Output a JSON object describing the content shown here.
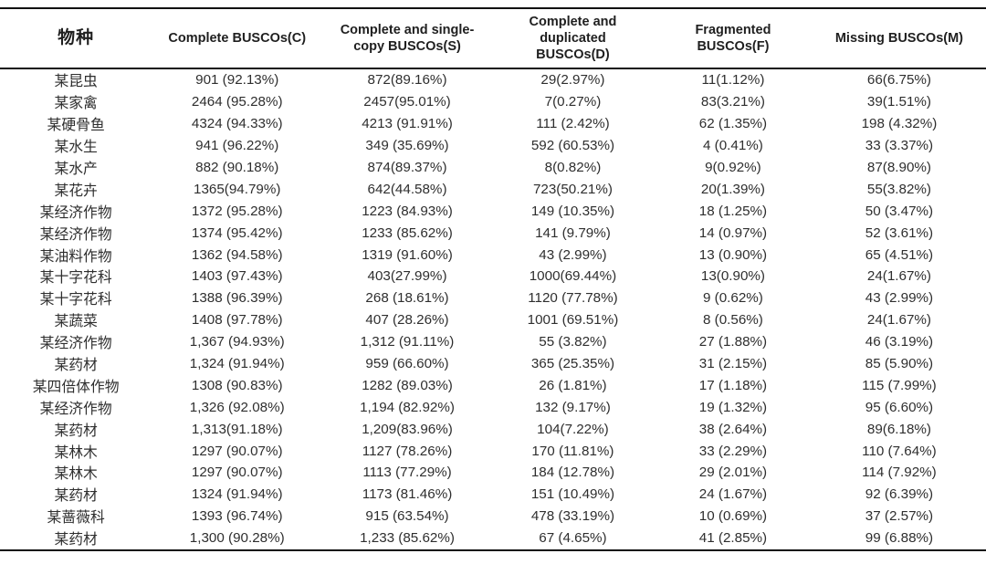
{
  "page": {
    "background": "#ffffff",
    "text_color": "#2e2e2e",
    "rule_color": "#111111"
  },
  "table": {
    "columns": [
      "物种",
      "Complete BUSCOs(C)",
      "Complete and single-\ncopy BUSCOs(S)",
      "Complete and\nduplicated\nBUSCOs(D)",
      "Fragmented\nBUSCOs(F)",
      "Missing BUSCOs(M)"
    ],
    "rows": [
      [
        "某昆虫",
        "901 (92.13%)",
        "872(89.16%)",
        "29(2.97%)",
        "11(1.12%)",
        "66(6.75%)"
      ],
      [
        "某家禽",
        "2464 (95.28%)",
        "2457(95.01%)",
        "7(0.27%)",
        "83(3.21%)",
        "39(1.51%)"
      ],
      [
        "某硬骨鱼",
        "4324 (94.33%)",
        "4213 (91.91%)",
        "111 (2.42%)",
        "62 (1.35%)",
        "198 (4.32%)"
      ],
      [
        "某水生",
        "941 (96.22%)",
        "349 (35.69%)",
        "592 (60.53%)",
        "4 (0.41%)",
        "33 (3.37%)"
      ],
      [
        "某水产",
        "882 (90.18%)",
        "874(89.37%)",
        "8(0.82%)",
        "9(0.92%)",
        "87(8.90%)"
      ],
      [
        "某花卉",
        "1365(94.79%)",
        "642(44.58%)",
        "723(50.21%)",
        "20(1.39%)",
        "55(3.82%)"
      ],
      [
        "某经济作物",
        "1372 (95.28%)",
        "1223 (84.93%)",
        "149 (10.35%)",
        "18 (1.25%)",
        "50 (3.47%)"
      ],
      [
        "某经济作物",
        "1374 (95.42%)",
        "1233 (85.62%)",
        "141 (9.79%)",
        "14 (0.97%)",
        "52 (3.61%)"
      ],
      [
        "某油料作物",
        "1362 (94.58%)",
        "1319 (91.60%)",
        "43 (2.99%)",
        "13 (0.90%)",
        "65 (4.51%)"
      ],
      [
        "某十字花科",
        "1403 (97.43%)",
        "403(27.99%)",
        "1000(69.44%)",
        "13(0.90%)",
        "24(1.67%)"
      ],
      [
        "某十字花科",
        "1388 (96.39%)",
        "268 (18.61%)",
        "1120 (77.78%)",
        "9 (0.62%)",
        "43 (2.99%)"
      ],
      [
        "某蔬菜",
        "1408 (97.78%)",
        "407 (28.26%)",
        "1001 (69.51%)",
        "8 (0.56%)",
        "24(1.67%)"
      ],
      [
        "某经济作物",
        "1,367 (94.93%)",
        "1,312 (91.11%)",
        "55 (3.82%)",
        "27 (1.88%)",
        "46 (3.19%)"
      ],
      [
        "某药材",
        "1,324 (91.94%)",
        "959 (66.60%)",
        "365 (25.35%)",
        "31 (2.15%)",
        "85 (5.90%)"
      ],
      [
        "某四倍体作物",
        "1308 (90.83%)",
        "1282 (89.03%)",
        "26 (1.81%)",
        "17 (1.18%)",
        "115 (7.99%)"
      ],
      [
        "某经济作物",
        "1,326 (92.08%)",
        "1,194 (82.92%)",
        "132 (9.17%)",
        "19 (1.32%)",
        "95 (6.60%)"
      ],
      [
        "某药材",
        "1,313(91.18%)",
        "1,209(83.96%)",
        "104(7.22%)",
        "38 (2.64%)",
        "89(6.18%)"
      ],
      [
        "某林木",
        "1297 (90.07%)",
        "1127 (78.26%)",
        "170 (11.81%)",
        "33 (2.29%)",
        "110 (7.64%)"
      ],
      [
        "某林木",
        "1297 (90.07%)",
        "1113 (77.29%)",
        "184 (12.78%)",
        "29 (2.01%)",
        "114 (7.92%)"
      ],
      [
        "某药材",
        "1324 (91.94%)",
        "1173 (81.46%)",
        "151 (10.49%)",
        "24 (1.67%)",
        "92 (6.39%)"
      ],
      [
        "某蔷薇科",
        "1393 (96.74%)",
        "915 (63.54%)",
        "478 (33.19%)",
        "10 (0.69%)",
        "37 (2.57%)"
      ],
      [
        "某药材",
        "1,300 (90.28%)",
        "1,233 (85.62%)",
        "67 (4.65%)",
        "41 (2.85%)",
        "99 (6.88%)"
      ]
    ]
  }
}
